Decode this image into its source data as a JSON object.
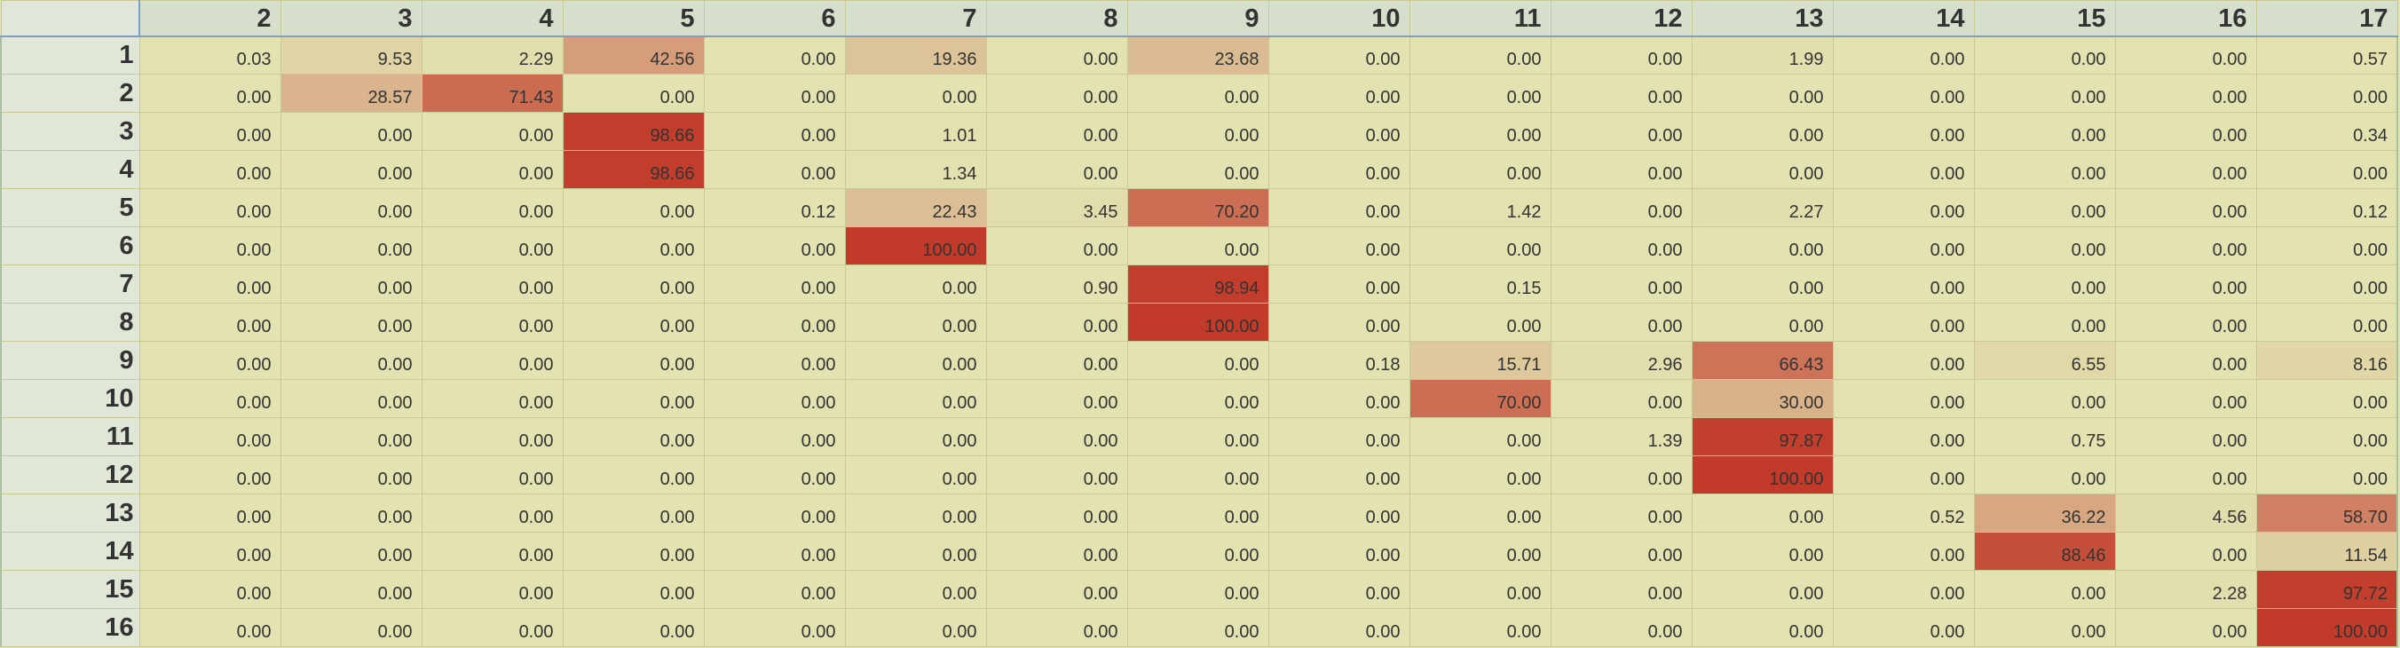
{
  "heatmap_colors": {
    "low": "#e3e3b1",
    "mid": "#d9b28a",
    "high": "#c23b2a"
  },
  "columns": [
    "2",
    "3",
    "4",
    "5",
    "6",
    "7",
    "8",
    "9",
    "10",
    "11",
    "12",
    "13",
    "14",
    "15",
    "16",
    "17"
  ],
  "rows": [
    {
      "label": "1",
      "values": [
        "0.03",
        "9.53",
        "2.29",
        "42.56",
        "0.00",
        "19.36",
        "0.00",
        "23.68",
        "0.00",
        "0.00",
        "0.00",
        "1.99",
        "0.00",
        "0.00",
        "0.00",
        "0.57"
      ]
    },
    {
      "label": "2",
      "values": [
        "0.00",
        "28.57",
        "71.43",
        "0.00",
        "0.00",
        "0.00",
        "0.00",
        "0.00",
        "0.00",
        "0.00",
        "0.00",
        "0.00",
        "0.00",
        "0.00",
        "0.00",
        "0.00"
      ]
    },
    {
      "label": "3",
      "values": [
        "0.00",
        "0.00",
        "0.00",
        "98.66",
        "0.00",
        "1.01",
        "0.00",
        "0.00",
        "0.00",
        "0.00",
        "0.00",
        "0.00",
        "0.00",
        "0.00",
        "0.00",
        "0.34"
      ]
    },
    {
      "label": "4",
      "values": [
        "0.00",
        "0.00",
        "0.00",
        "98.66",
        "0.00",
        "1.34",
        "0.00",
        "0.00",
        "0.00",
        "0.00",
        "0.00",
        "0.00",
        "0.00",
        "0.00",
        "0.00",
        "0.00"
      ]
    },
    {
      "label": "5",
      "values": [
        "0.00",
        "0.00",
        "0.00",
        "0.00",
        "0.12",
        "22.43",
        "3.45",
        "70.20",
        "0.00",
        "1.42",
        "0.00",
        "2.27",
        "0.00",
        "0.00",
        "0.00",
        "0.12"
      ]
    },
    {
      "label": "6",
      "values": [
        "0.00",
        "0.00",
        "0.00",
        "0.00",
        "0.00",
        "100.00",
        "0.00",
        "0.00",
        "0.00",
        "0.00",
        "0.00",
        "0.00",
        "0.00",
        "0.00",
        "0.00",
        "0.00"
      ]
    },
    {
      "label": "7",
      "values": [
        "0.00",
        "0.00",
        "0.00",
        "0.00",
        "0.00",
        "0.00",
        "0.90",
        "98.94",
        "0.00",
        "0.15",
        "0.00",
        "0.00",
        "0.00",
        "0.00",
        "0.00",
        "0.00"
      ]
    },
    {
      "label": "8",
      "values": [
        "0.00",
        "0.00",
        "0.00",
        "0.00",
        "0.00",
        "0.00",
        "0.00",
        "100.00",
        "0.00",
        "0.00",
        "0.00",
        "0.00",
        "0.00",
        "0.00",
        "0.00",
        "0.00"
      ]
    },
    {
      "label": "9",
      "values": [
        "0.00",
        "0.00",
        "0.00",
        "0.00",
        "0.00",
        "0.00",
        "0.00",
        "0.00",
        "0.18",
        "15.71",
        "2.96",
        "66.43",
        "0.00",
        "6.55",
        "0.00",
        "8.16"
      ]
    },
    {
      "label": "10",
      "values": [
        "0.00",
        "0.00",
        "0.00",
        "0.00",
        "0.00",
        "0.00",
        "0.00",
        "0.00",
        "0.00",
        "70.00",
        "0.00",
        "30.00",
        "0.00",
        "0.00",
        "0.00",
        "0.00"
      ]
    },
    {
      "label": "11",
      "values": [
        "0.00",
        "0.00",
        "0.00",
        "0.00",
        "0.00",
        "0.00",
        "0.00",
        "0.00",
        "0.00",
        "0.00",
        "1.39",
        "97.87",
        "0.00",
        "0.75",
        "0.00",
        "0.00"
      ]
    },
    {
      "label": "12",
      "values": [
        "0.00",
        "0.00",
        "0.00",
        "0.00",
        "0.00",
        "0.00",
        "0.00",
        "0.00",
        "0.00",
        "0.00",
        "0.00",
        "100.00",
        "0.00",
        "0.00",
        "0.00",
        "0.00"
      ]
    },
    {
      "label": "13",
      "values": [
        "0.00",
        "0.00",
        "0.00",
        "0.00",
        "0.00",
        "0.00",
        "0.00",
        "0.00",
        "0.00",
        "0.00",
        "0.00",
        "0.00",
        "0.52",
        "36.22",
        "4.56",
        "58.70"
      ]
    },
    {
      "label": "14",
      "values": [
        "0.00",
        "0.00",
        "0.00",
        "0.00",
        "0.00",
        "0.00",
        "0.00",
        "0.00",
        "0.00",
        "0.00",
        "0.00",
        "0.00",
        "0.00",
        "88.46",
        "0.00",
        "11.54"
      ]
    },
    {
      "label": "15",
      "values": [
        "0.00",
        "0.00",
        "0.00",
        "0.00",
        "0.00",
        "0.00",
        "0.00",
        "0.00",
        "0.00",
        "0.00",
        "0.00",
        "0.00",
        "0.00",
        "0.00",
        "2.28",
        "97.72"
      ]
    },
    {
      "label": "16",
      "values": [
        "0.00",
        "0.00",
        "0.00",
        "0.00",
        "0.00",
        "0.00",
        "0.00",
        "0.00",
        "0.00",
        "0.00",
        "0.00",
        "0.00",
        "0.00",
        "0.00",
        "0.00",
        "100.00"
      ]
    }
  ]
}
